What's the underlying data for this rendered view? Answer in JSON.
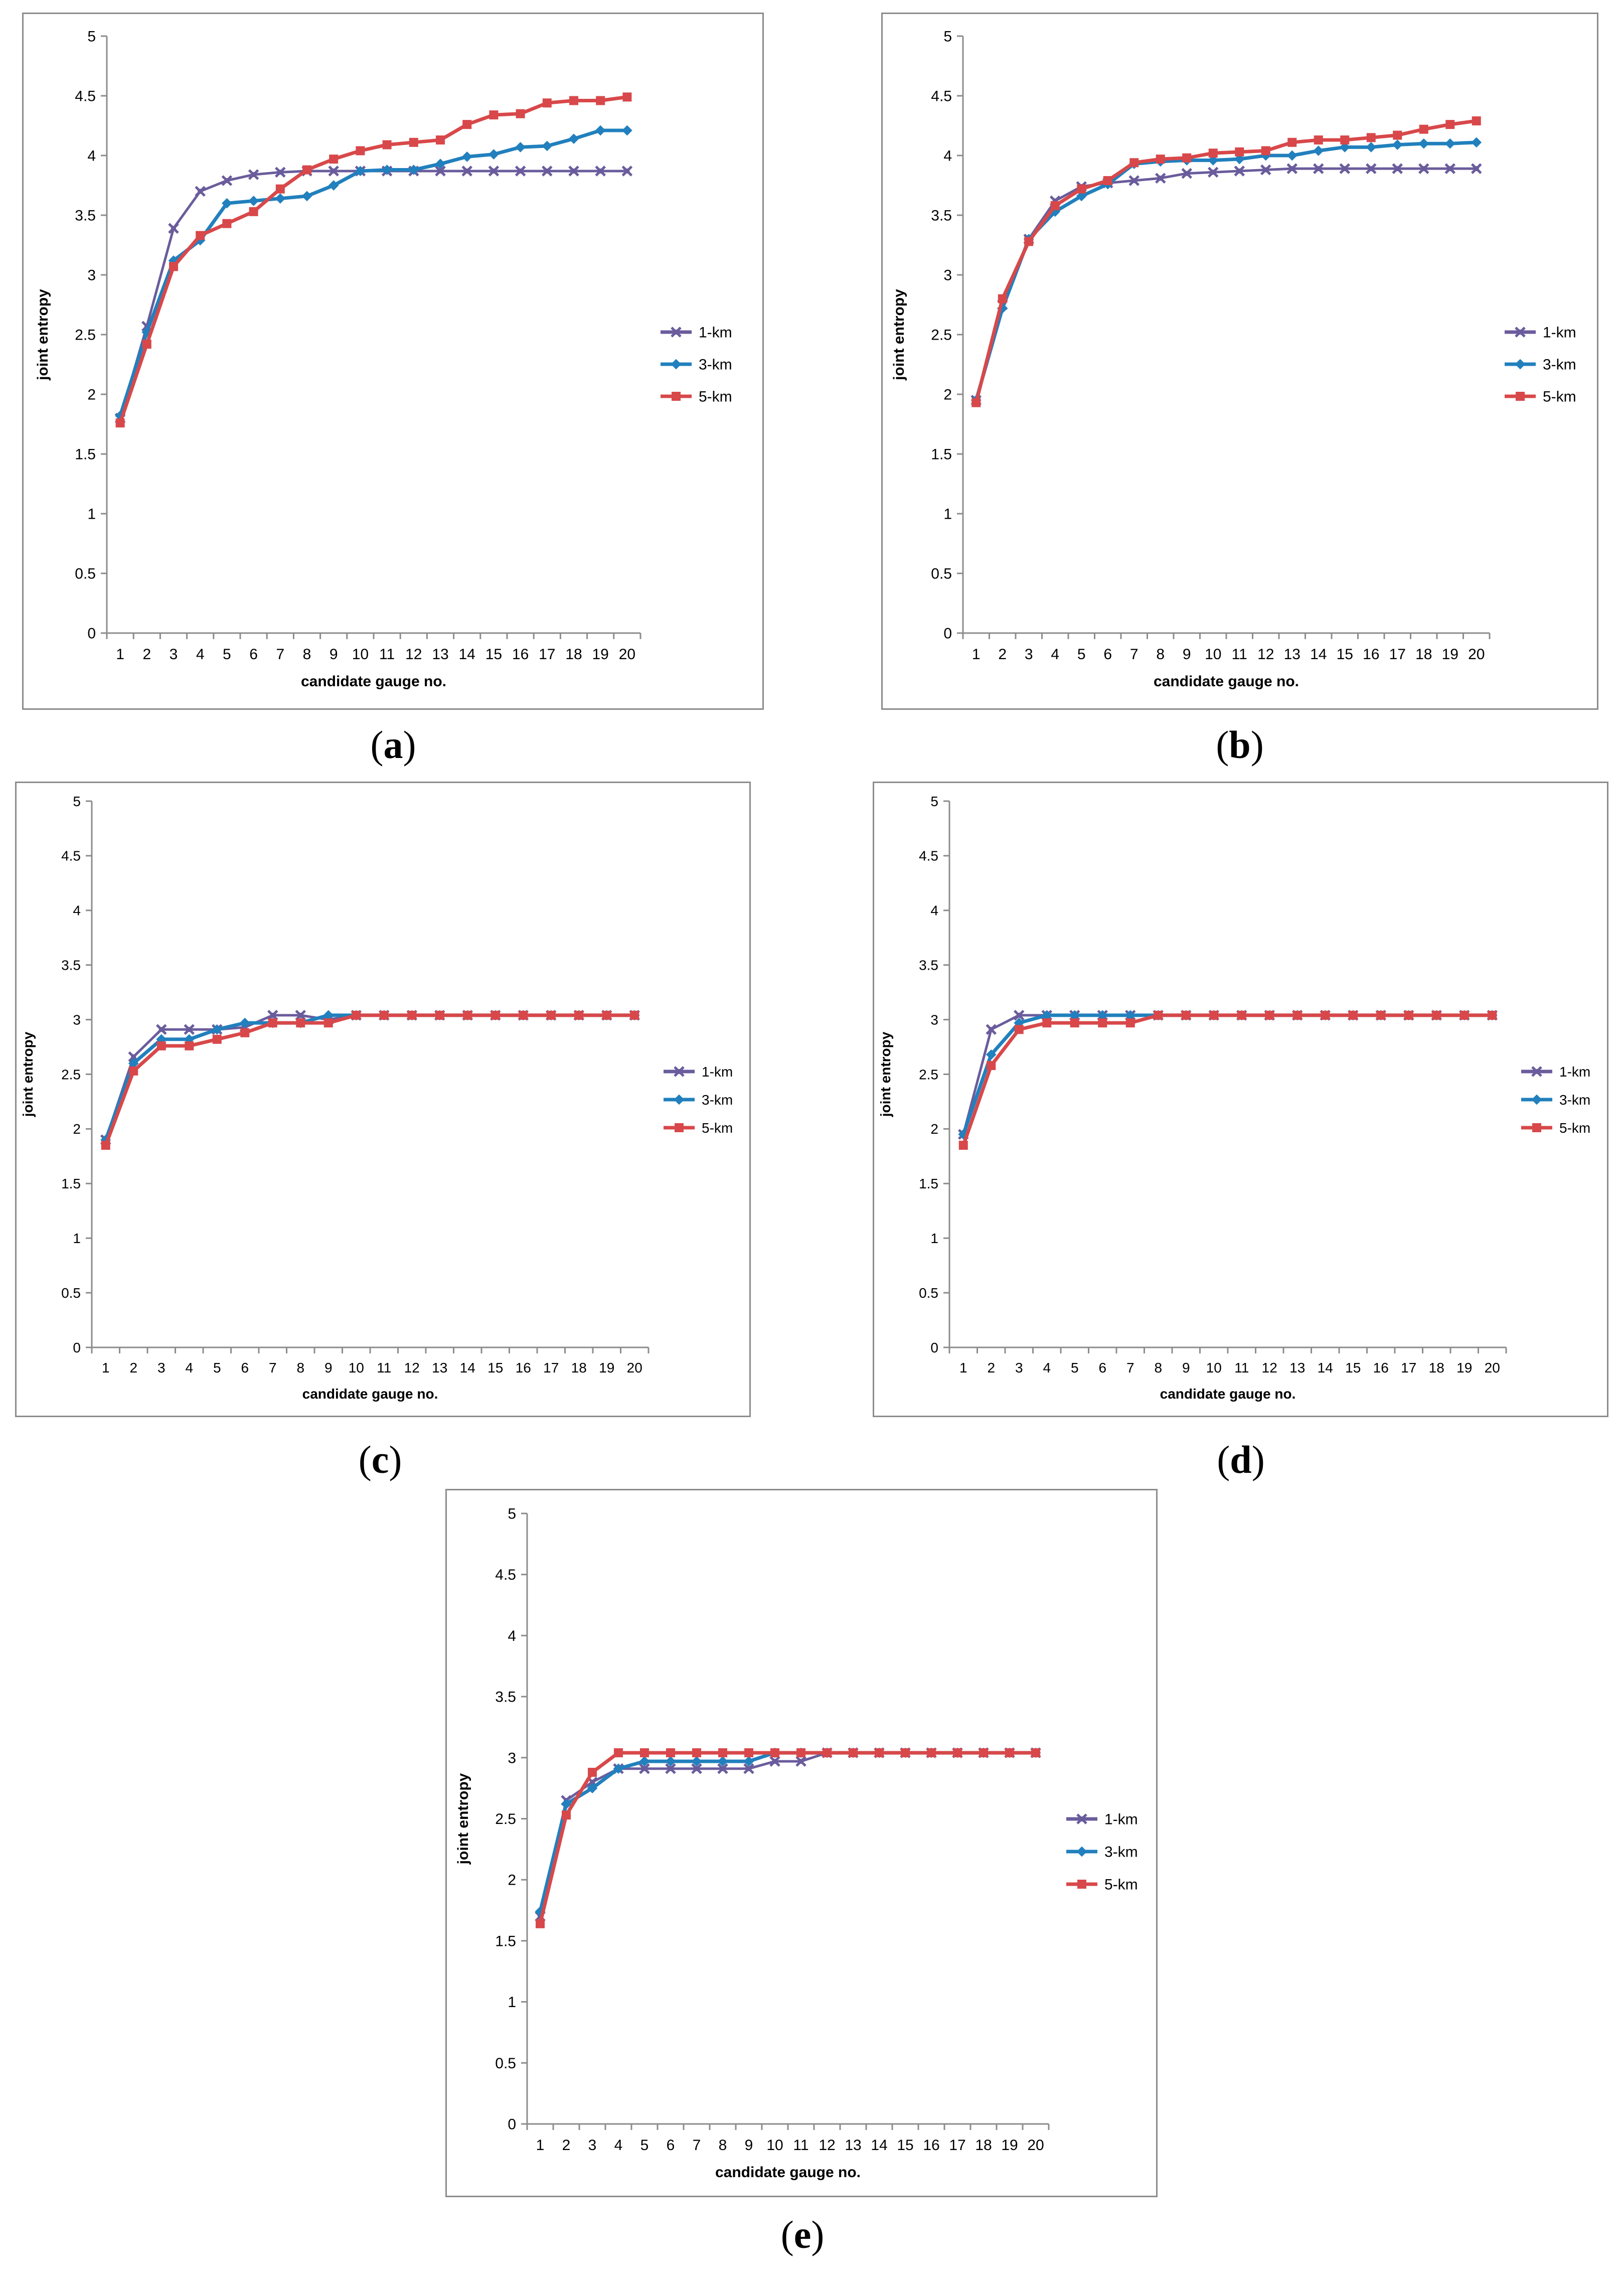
{
  "chart_data": [
    {
      "type": "line",
      "panel_label": "a",
      "xlabel": "candidate gauge no.",
      "ylabel": "joint entropy",
      "ylim": [
        0,
        5
      ],
      "yticks": [
        "0",
        "0.5",
        "1",
        "1.5",
        "2",
        "2.5",
        "3",
        "3.5",
        "4",
        "4.5",
        "5"
      ],
      "categories": [
        "1",
        "2",
        "3",
        "4",
        "5",
        "6",
        "7",
        "8",
        "9",
        "10",
        "11",
        "12",
        "13",
        "14",
        "15",
        "16",
        "17",
        "18",
        "19",
        "20"
      ],
      "legend_position": "right",
      "grid": false,
      "series": [
        {
          "name": "1-km",
          "values": [
            1.8,
            2.57,
            3.39,
            3.7,
            3.79,
            3.84,
            3.86,
            3.87,
            3.87,
            3.87,
            3.87,
            3.87,
            3.87,
            3.87,
            3.87,
            3.87,
            3.87,
            3.87,
            3.87,
            3.87
          ]
        },
        {
          "name": "3-km",
          "values": [
            1.82,
            2.52,
            3.12,
            3.29,
            3.6,
            3.62,
            3.64,
            3.66,
            3.75,
            3.87,
            3.88,
            3.88,
            3.93,
            3.99,
            4.01,
            4.07,
            4.08,
            4.14,
            4.21,
            4.21
          ]
        },
        {
          "name": "5-km",
          "values": [
            1.76,
            2.42,
            3.07,
            3.33,
            3.43,
            3.53,
            3.72,
            3.88,
            3.97,
            4.04,
            4.09,
            4.11,
            4.13,
            4.26,
            4.34,
            4.35,
            4.44,
            4.46,
            4.46,
            4.49
          ]
        }
      ]
    },
    {
      "type": "line",
      "panel_label": "b",
      "xlabel": "candidate gauge no.",
      "ylabel": "joint entropy",
      "ylim": [
        0,
        5
      ],
      "yticks": [
        "0",
        "0.5",
        "1",
        "1.5",
        "2",
        "2.5",
        "3",
        "3.5",
        "4",
        "4.5",
        "5"
      ],
      "categories": [
        "1",
        "2",
        "3",
        "4",
        "5",
        "6",
        "7",
        "8",
        "9",
        "10",
        "11",
        "12",
        "13",
        "14",
        "15",
        "16",
        "17",
        "18",
        "19",
        "20"
      ],
      "legend_position": "right",
      "grid": false,
      "series": [
        {
          "name": "1-km",
          "values": [
            1.95,
            2.75,
            3.3,
            3.62,
            3.74,
            3.77,
            3.79,
            3.81,
            3.85,
            3.86,
            3.87,
            3.88,
            3.89,
            3.89,
            3.89,
            3.89,
            3.89,
            3.89,
            3.89,
            3.89
          ]
        },
        {
          "name": "3-km",
          "values": [
            1.95,
            2.72,
            3.3,
            3.53,
            3.66,
            3.76,
            3.93,
            3.95,
            3.96,
            3.96,
            3.97,
            4.0,
            4.0,
            4.04,
            4.07,
            4.07,
            4.09,
            4.1,
            4.1,
            4.11
          ]
        },
        {
          "name": "5-km",
          "values": [
            1.93,
            2.8,
            3.28,
            3.58,
            3.72,
            3.79,
            3.94,
            3.97,
            3.98,
            4.02,
            4.03,
            4.04,
            4.11,
            4.13,
            4.13,
            4.15,
            4.17,
            4.22,
            4.26,
            4.29
          ]
        }
      ]
    },
    {
      "type": "line",
      "panel_label": "c",
      "xlabel": "candidate gauge no.",
      "ylabel": "joint entropy",
      "ylim": [
        0,
        5
      ],
      "yticks": [
        "0",
        "0.5",
        "1",
        "1.5",
        "2",
        "2.5",
        "3",
        "3.5",
        "4",
        "4.5",
        "5"
      ],
      "categories": [
        "1",
        "2",
        "3",
        "4",
        "5",
        "6",
        "7",
        "8",
        "9",
        "10",
        "11",
        "12",
        "13",
        "14",
        "15",
        "16",
        "17",
        "18",
        "19",
        "20"
      ],
      "legend_position": "right",
      "grid": false,
      "series": [
        {
          "name": "1-km",
          "values": [
            1.9,
            2.66,
            2.91,
            2.91,
            2.91,
            2.93,
            3.04,
            3.04,
            3.0,
            3.04,
            3.04,
            3.04,
            3.04,
            3.04,
            3.04,
            3.04,
            3.04,
            3.04,
            3.04,
            3.04
          ]
        },
        {
          "name": "3-km",
          "values": [
            1.9,
            2.6,
            2.82,
            2.82,
            2.91,
            2.97,
            2.97,
            2.97,
            3.04,
            3.04,
            3.04,
            3.04,
            3.04,
            3.04,
            3.04,
            3.04,
            3.04,
            3.04,
            3.04,
            3.04
          ]
        },
        {
          "name": "5-km",
          "values": [
            1.85,
            2.53,
            2.76,
            2.76,
            2.82,
            2.88,
            2.97,
            2.97,
            2.97,
            3.04,
            3.04,
            3.04,
            3.04,
            3.04,
            3.04,
            3.04,
            3.04,
            3.04,
            3.04,
            3.04
          ]
        }
      ]
    },
    {
      "type": "line",
      "panel_label": "d",
      "xlabel": "candidate gauge no.",
      "ylabel": "joint entropy",
      "ylim": [
        0,
        5
      ],
      "yticks": [
        "0",
        "0.5",
        "1",
        "1.5",
        "2",
        "2.5",
        "3",
        "3.5",
        "4",
        "4.5",
        "5"
      ],
      "categories": [
        "1",
        "2",
        "3",
        "4",
        "5",
        "6",
        "7",
        "8",
        "9",
        "10",
        "11",
        "12",
        "13",
        "14",
        "15",
        "16",
        "17",
        "18",
        "19",
        "20"
      ],
      "legend_position": "right",
      "grid": false,
      "series": [
        {
          "name": "1-km",
          "values": [
            1.95,
            2.91,
            3.04,
            3.04,
            3.04,
            3.04,
            3.04,
            3.04,
            3.04,
            3.04,
            3.04,
            3.04,
            3.04,
            3.04,
            3.04,
            3.04,
            3.04,
            3.04,
            3.04,
            3.04
          ]
        },
        {
          "name": "3-km",
          "values": [
            1.95,
            2.68,
            2.97,
            3.04,
            3.04,
            3.04,
            3.04,
            3.04,
            3.04,
            3.04,
            3.04,
            3.04,
            3.04,
            3.04,
            3.04,
            3.04,
            3.04,
            3.04,
            3.04,
            3.04
          ]
        },
        {
          "name": "5-km",
          "values": [
            1.85,
            2.58,
            2.91,
            2.97,
            2.97,
            2.97,
            2.97,
            3.04,
            3.04,
            3.04,
            3.04,
            3.04,
            3.04,
            3.04,
            3.04,
            3.04,
            3.04,
            3.04,
            3.04,
            3.04
          ]
        }
      ]
    },
    {
      "type": "line",
      "panel_label": "e",
      "xlabel": "candidate gauge no.",
      "ylabel": "joint entropy",
      "ylim": [
        0,
        5
      ],
      "yticks": [
        "0",
        "0.5",
        "1",
        "1.5",
        "2",
        "2.5",
        "3",
        "3.5",
        "4",
        "4.5",
        "5"
      ],
      "categories": [
        "1",
        "2",
        "3",
        "4",
        "5",
        "6",
        "7",
        "8",
        "9",
        "10",
        "11",
        "12",
        "13",
        "14",
        "15",
        "16",
        "17",
        "18",
        "19",
        "20"
      ],
      "legend_position": "right",
      "grid": false,
      "series": [
        {
          "name": "1-km",
          "values": [
            1.7,
            2.65,
            2.8,
            2.91,
            2.91,
            2.91,
            2.91,
            2.91,
            2.91,
            2.97,
            2.97,
            3.04,
            3.04,
            3.04,
            3.04,
            3.04,
            3.04,
            3.04,
            3.04,
            3.04
          ]
        },
        {
          "name": "3-km",
          "values": [
            1.74,
            2.62,
            2.75,
            2.91,
            2.97,
            2.97,
            2.97,
            2.97,
            2.97,
            3.04,
            3.04,
            3.04,
            3.04,
            3.04,
            3.04,
            3.04,
            3.04,
            3.04,
            3.04,
            3.04
          ]
        },
        {
          "name": "5-km",
          "values": [
            1.64,
            2.53,
            2.88,
            3.04,
            3.04,
            3.04,
            3.04,
            3.04,
            3.04,
            3.04,
            3.04,
            3.04,
            3.04,
            3.04,
            3.04,
            3.04,
            3.04,
            3.04,
            3.04,
            3.04
          ]
        }
      ]
    }
  ],
  "colors": {
    "1-km": "#6a5c9c",
    "3-km": "#2180bd",
    "5-km": "#d8484a",
    "axis": "#8c8c8c",
    "text": "#000000"
  }
}
